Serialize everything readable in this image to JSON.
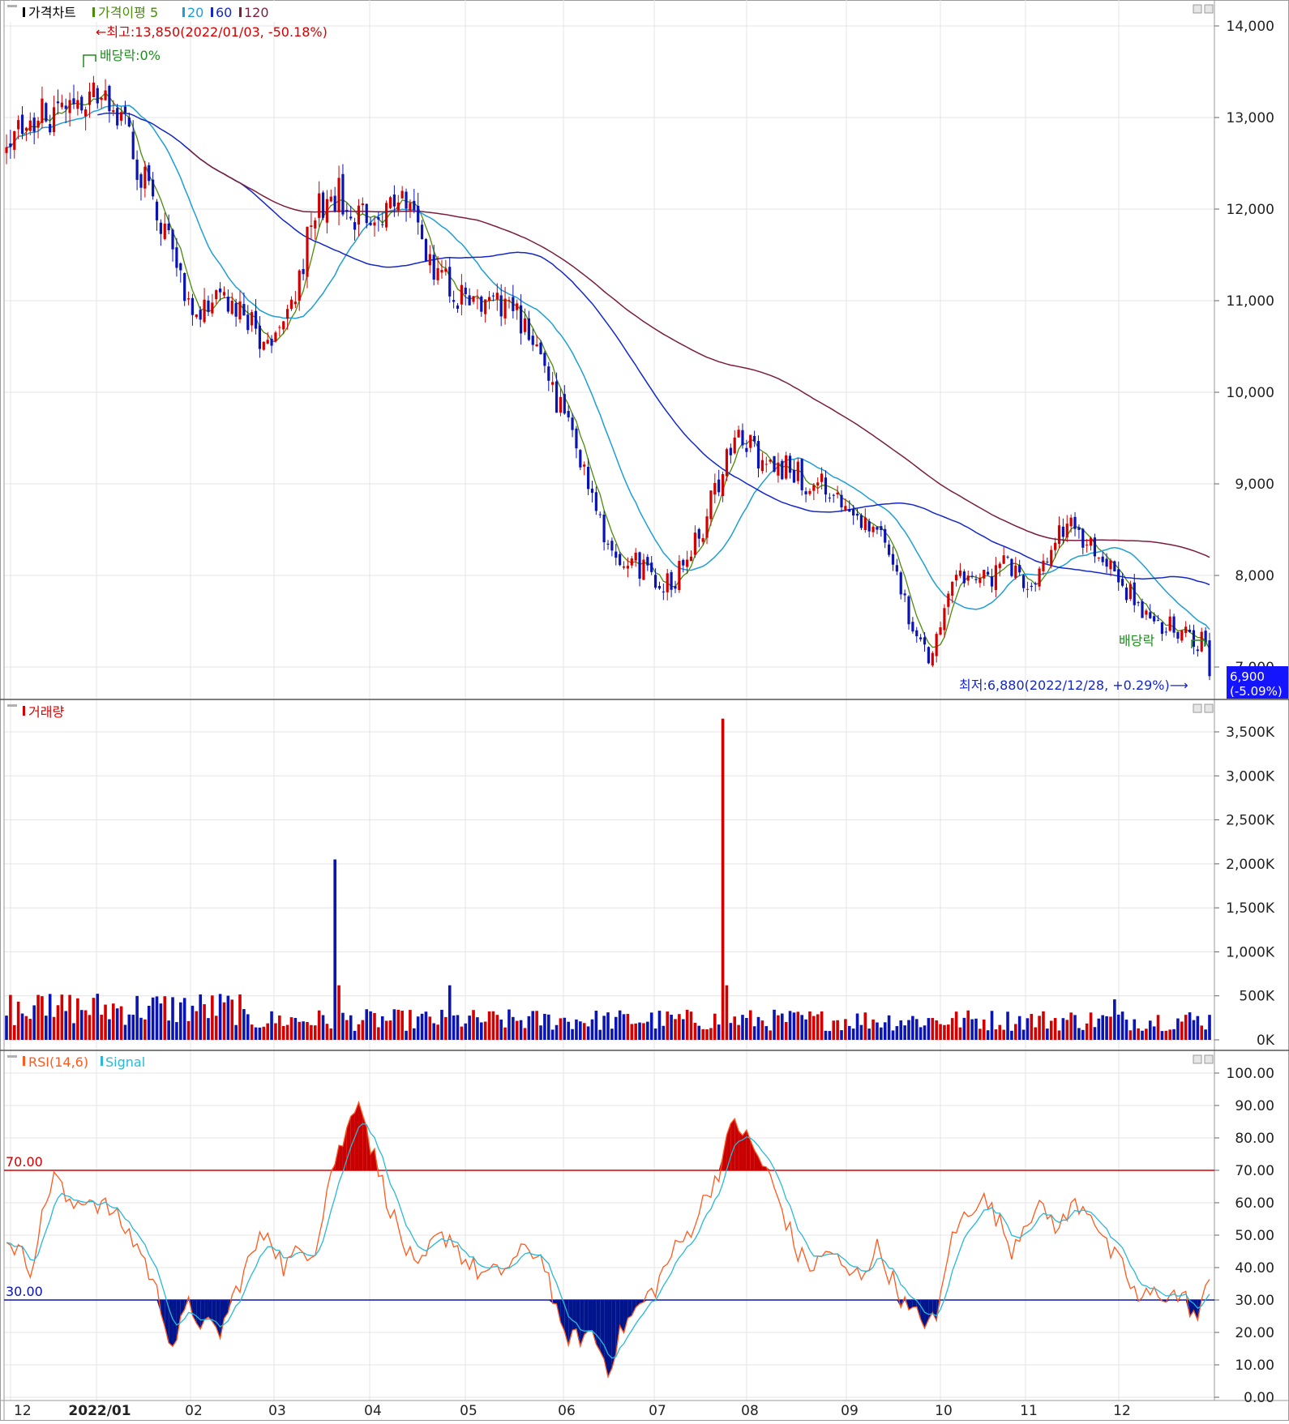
{
  "colors": {
    "up": "#d40000",
    "down": "#0a14b4",
    "ma5": "#4a8c0a",
    "ma20": "#1e9ed8",
    "ma60": "#1428c8",
    "ma120": "#7a1e3c",
    "rsi": "#ff5a1e",
    "signal": "#29b8d8",
    "overbought_fill": "#c80000",
    "oversold_fill": "#00148c",
    "grid": "#e4e4e4",
    "current_box": "#1414ff"
  },
  "price_panel": {
    "legend": [
      {
        "label": "가격차트",
        "color": "#000000"
      },
      {
        "label": "가격이평 5",
        "color": "#4a8c0a"
      },
      {
        "label": "20",
        "color": "#1e9ed8"
      },
      {
        "label": "60",
        "color": "#1428c8"
      },
      {
        "label": "120",
        "color": "#7a1e3c"
      }
    ],
    "high_annotation": "←최고:13,850(2022/01/03,  -50.18%)",
    "low_annotation": "최저:6,880(2022/12/28,  +0.29%)⟶",
    "dividend_label_1": "배당락:0%",
    "dividend_label_2": "배당락",
    "current_price": "6,900",
    "current_change": "(-5.09%)"
  },
  "volume_panel": {
    "legend": [
      {
        "label": "거래량",
        "color": "#d40000"
      }
    ]
  },
  "rsi_panel": {
    "legend": [
      {
        "label": "RSI(14,6)",
        "color": "#ff5a1e"
      },
      {
        "label": "Signal",
        "color": "#29b8d8"
      }
    ],
    "upper_label": "70.00",
    "lower_label": "30.00"
  },
  "chart_data": [
    {
      "type": "candlestick",
      "title": "가격차트",
      "y_ticks": [
        "14,000",
        "13,000",
        "12,000",
        "11,000",
        "10,000",
        "9,000",
        "8,000",
        "7,000"
      ],
      "ylim": [
        6800,
        14250
      ],
      "x_ticks": [
        "12",
        "2022/01",
        "02",
        "03",
        "04",
        "05",
        "06",
        "07",
        "08",
        "09",
        "10",
        "11",
        "12"
      ],
      "high": {
        "value": 13850,
        "date": "2022/01/03"
      },
      "low": {
        "value": 6880,
        "date": "2022/12/28"
      },
      "last": 6900,
      "close_anchors": [
        [
          0,
          12600
        ],
        [
          6,
          12900
        ],
        [
          12,
          13100
        ],
        [
          18,
          13200
        ],
        [
          22,
          13350
        ],
        [
          26,
          13000
        ],
        [
          30,
          12900
        ],
        [
          34,
          12400
        ],
        [
          38,
          11800
        ],
        [
          42,
          11500
        ],
        [
          46,
          11000
        ],
        [
          50,
          10900
        ],
        [
          54,
          11100
        ],
        [
          58,
          11000
        ],
        [
          62,
          10800
        ],
        [
          66,
          10400
        ],
        [
          70,
          10700
        ],
        [
          74,
          11300
        ],
        [
          77,
          11800
        ],
        [
          80,
          12100
        ],
        [
          84,
          12200
        ],
        [
          88,
          11800
        ],
        [
          92,
          12000
        ],
        [
          96,
          11900
        ],
        [
          100,
          12000
        ],
        [
          104,
          11800
        ],
        [
          108,
          11400
        ],
        [
          112,
          11200
        ],
        [
          116,
          11000
        ],
        [
          120,
          10900
        ],
        [
          124,
          11000
        ],
        [
          128,
          10900
        ],
        [
          132,
          10600
        ],
        [
          136,
          10300
        ],
        [
          140,
          9800
        ],
        [
          144,
          9400
        ],
        [
          148,
          8900
        ],
        [
          152,
          8300
        ],
        [
          156,
          8200
        ],
        [
          160,
          8100
        ],
        [
          164,
          8000
        ],
        [
          168,
          7900
        ],
        [
          172,
          8200
        ],
        [
          176,
          8500
        ],
        [
          178,
          8800
        ],
        [
          182,
          9300
        ],
        [
          186,
          9500
        ],
        [
          190,
          9300
        ],
        [
          194,
          9200
        ],
        [
          198,
          9200
        ],
        [
          202,
          9000
        ],
        [
          206,
          9100
        ],
        [
          210,
          8800
        ],
        [
          214,
          8700
        ],
        [
          218,
          8500
        ],
        [
          222,
          8300
        ],
        [
          226,
          7800
        ],
        [
          230,
          7300
        ],
        [
          233,
          7050
        ],
        [
          236,
          7500
        ],
        [
          240,
          7900
        ],
        [
          244,
          8100
        ],
        [
          248,
          7900
        ],
        [
          252,
          8100
        ],
        [
          256,
          8000
        ],
        [
          260,
          7900
        ],
        [
          264,
          8300
        ],
        [
          268,
          8600
        ],
        [
          272,
          8400
        ],
        [
          276,
          8200
        ],
        [
          280,
          8000
        ],
        [
          284,
          7800
        ],
        [
          288,
          7600
        ],
        [
          292,
          7450
        ],
        [
          296,
          7400
        ],
        [
          300,
          7300
        ],
        [
          303,
          7250
        ],
        [
          304,
          6900
        ]
      ],
      "ma_last": {
        "ma5": 7150,
        "ma20": 7450,
        "ma60": 7880,
        "ma120": 8260
      }
    },
    {
      "type": "bar",
      "title": "거래량",
      "y_ticks": [
        "3,500K",
        "3,000K",
        "2,500K",
        "2,000K",
        "1,500K",
        "1,000K",
        "500K",
        "0K"
      ],
      "ylim": [
        0,
        3700
      ],
      "unit": "K",
      "spikes": [
        {
          "day": 83,
          "value": 2050
        },
        {
          "day": 181,
          "value": 3650
        },
        {
          "day": 112,
          "value": 620
        },
        {
          "day": 280,
          "value": 460
        }
      ],
      "typical_range": [
        100,
        600
      ]
    },
    {
      "type": "line",
      "title": "RSI(14,6)",
      "series": [
        {
          "name": "RSI(14,6)"
        },
        {
          "name": "Signal"
        }
      ],
      "y_ticks": [
        "100.00",
        "90.00",
        "80.00",
        "70.00",
        "60.00",
        "50.00",
        "40.00",
        "30.00",
        "20.00",
        "10.00",
        "0.00"
      ],
      "ylim": [
        0,
        100
      ],
      "thresholds": [
        70,
        30
      ],
      "rsi_anchors": [
        [
          0,
          50
        ],
        [
          6,
          40
        ],
        [
          12,
          70
        ],
        [
          16,
          58
        ],
        [
          20,
          62
        ],
        [
          26,
          58
        ],
        [
          30,
          52
        ],
        [
          34,
          45
        ],
        [
          38,
          32
        ],
        [
          42,
          16
        ],
        [
          46,
          28
        ],
        [
          50,
          22
        ],
        [
          54,
          20
        ],
        [
          58,
          33
        ],
        [
          62,
          44
        ],
        [
          66,
          52
        ],
        [
          70,
          40
        ],
        [
          74,
          45
        ],
        [
          78,
          46
        ],
        [
          82,
          70
        ],
        [
          86,
          82
        ],
        [
          89,
          94
        ],
        [
          92,
          78
        ],
        [
          96,
          62
        ],
        [
          100,
          48
        ],
        [
          104,
          38
        ],
        [
          108,
          48
        ],
        [
          112,
          50
        ],
        [
          116,
          42
        ],
        [
          120,
          38
        ],
        [
          124,
          38
        ],
        [
          128,
          42
        ],
        [
          132,
          46
        ],
        [
          136,
          42
        ],
        [
          140,
          20
        ],
        [
          144,
          18
        ],
        [
          148,
          20
        ],
        [
          152,
          9
        ],
        [
          156,
          22
        ],
        [
          160,
          28
        ],
        [
          164,
          34
        ],
        [
          168,
          44
        ],
        [
          172,
          50
        ],
        [
          176,
          60
        ],
        [
          180,
          70
        ],
        [
          184,
          86
        ],
        [
          188,
          78
        ],
        [
          192,
          70
        ],
        [
          196,
          58
        ],
        [
          200,
          44
        ],
        [
          204,
          40
        ],
        [
          208,
          46
        ],
        [
          212,
          38
        ],
        [
          216,
          38
        ],
        [
          220,
          46
        ],
        [
          224,
          36
        ],
        [
          228,
          26
        ],
        [
          232,
          24
        ],
        [
          235,
          23
        ],
        [
          238,
          46
        ],
        [
          242,
          56
        ],
        [
          246,
          62
        ],
        [
          250,
          56
        ],
        [
          254,
          46
        ],
        [
          258,
          56
        ],
        [
          262,
          58
        ],
        [
          266,
          52
        ],
        [
          270,
          60
        ],
        [
          274,
          58
        ],
        [
          278,
          46
        ],
        [
          282,
          40
        ],
        [
          286,
          30
        ],
        [
          290,
          32
        ],
        [
          294,
          32
        ],
        [
          298,
          30
        ],
        [
          301,
          24
        ],
        [
          304,
          36
        ]
      ]
    }
  ]
}
